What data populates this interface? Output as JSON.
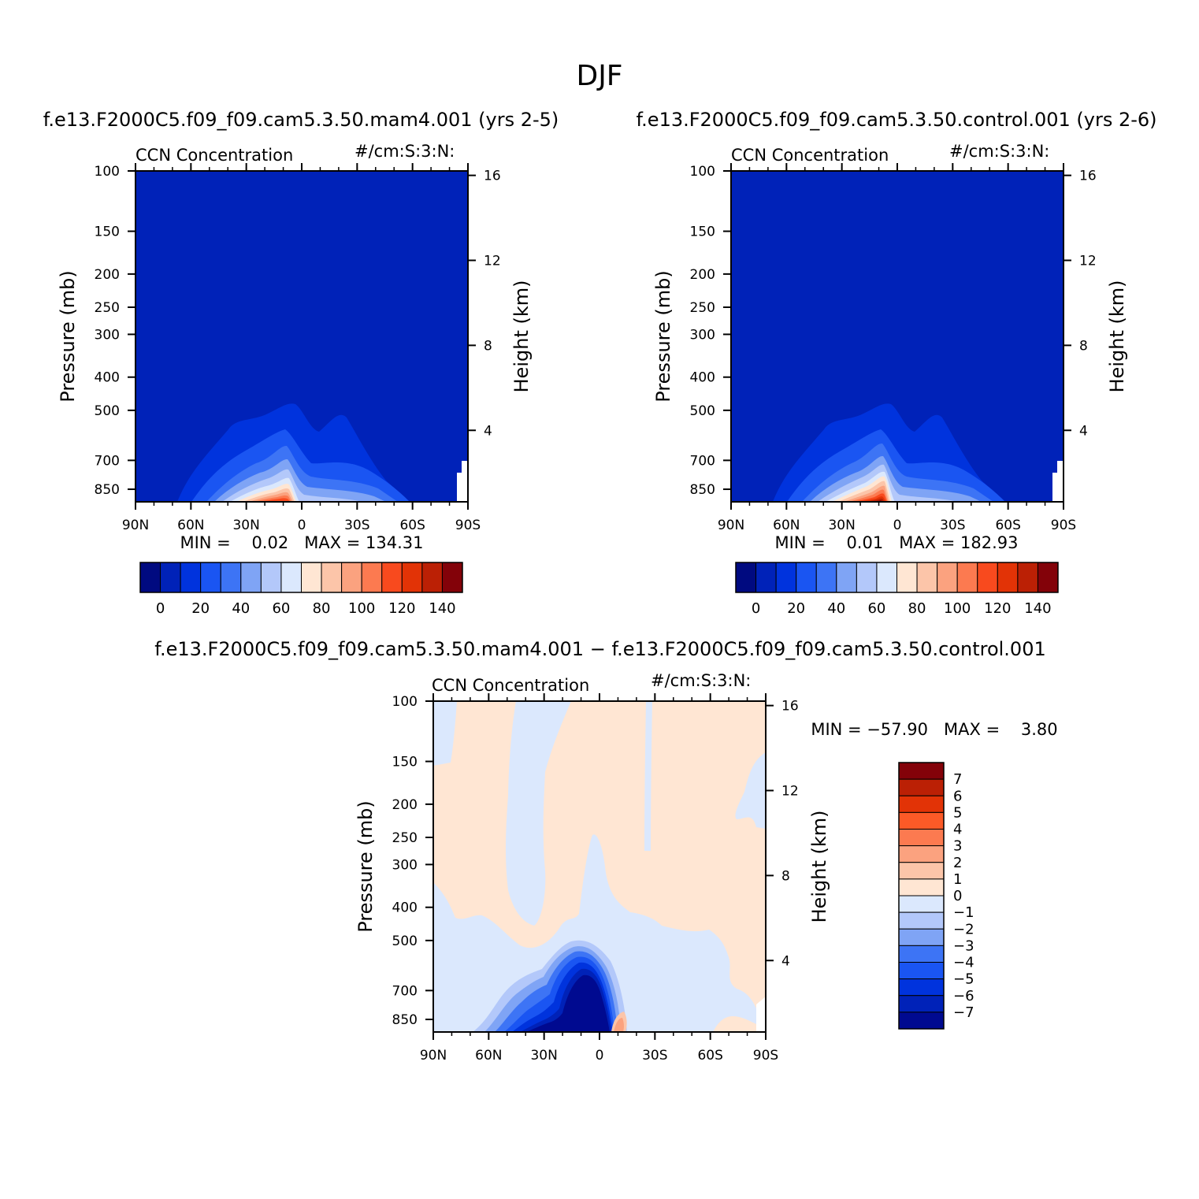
{
  "page_title": "DJF",
  "chart_data": [
    {
      "type": "heatmap",
      "title": "f.e13.F2000C5.f09_f09.cam5.3.50.mam4.001 (yrs 2-5)",
      "subtitle_left": "CCN Concentration",
      "subtitle_right": "#/cm:S:3:N:",
      "xlabel": "",
      "ylabel": "Pressure (mb)",
      "ylabel_right": "Height (km)",
      "x_ticks": [
        "90N",
        "60N",
        "30N",
        "0",
        "30S",
        "60S",
        "90S"
      ],
      "y_ticks": [
        "100",
        "150",
        "200",
        "250",
        "300",
        "400",
        "500",
        "700",
        "850"
      ],
      "y_ticks_right": [
        "16",
        "12",
        "8",
        "4"
      ],
      "stats_text": "MIN =    0.02   MAX = 134.31",
      "min": 0.02,
      "max": 134.31,
      "colorbar_levels": [
        "0",
        "20",
        "40",
        "60",
        "80",
        "100",
        "120",
        "140"
      ],
      "colorbar_orientation": "horizontal"
    },
    {
      "type": "heatmap",
      "title": "f.e13.F2000C5.f09_f09.cam5.3.50.control.001 (yrs 2-6)",
      "subtitle_left": "CCN Concentration",
      "subtitle_right": "#/cm:S:3:N:",
      "xlabel": "",
      "ylabel": "Pressure (mb)",
      "ylabel_right": "Height (km)",
      "x_ticks": [
        "90N",
        "60N",
        "30N",
        "0",
        "30S",
        "60S",
        "90S"
      ],
      "y_ticks": [
        "100",
        "150",
        "200",
        "250",
        "300",
        "400",
        "500",
        "700",
        "850"
      ],
      "y_ticks_right": [
        "16",
        "12",
        "8",
        "4"
      ],
      "stats_text": "MIN =    0.01   MAX = 182.93",
      "min": 0.01,
      "max": 182.93,
      "colorbar_levels": [
        "0",
        "20",
        "40",
        "60",
        "80",
        "100",
        "120",
        "140"
      ],
      "colorbar_orientation": "horizontal"
    },
    {
      "type": "heatmap",
      "title": "f.e13.F2000C5.f09_f09.cam5.3.50.mam4.001 − f.e13.F2000C5.f09_f09.cam5.3.50.control.001",
      "subtitle_left": "CCN Concentration",
      "subtitle_right": "#/cm:S:3:N:",
      "xlabel": "",
      "ylabel": "Pressure (mb)",
      "ylabel_right": "Height (km)",
      "x_ticks": [
        "90N",
        "60N",
        "30N",
        "0",
        "30S",
        "60S",
        "90S"
      ],
      "y_ticks": [
        "100",
        "150",
        "200",
        "250",
        "300",
        "400",
        "500",
        "700",
        "850"
      ],
      "y_ticks_right": [
        "16",
        "12",
        "8",
        "4"
      ],
      "stats_text": "MIN = −57.90   MAX =    3.80",
      "min": -57.9,
      "max": 3.8,
      "colorbar_levels": [
        "7",
        "6",
        "5",
        "4",
        "3",
        "2",
        "1",
        "0",
        "−1",
        "−2",
        "−3",
        "−4",
        "−5",
        "−6",
        "−7"
      ],
      "colorbar_orientation": "vertical"
    }
  ],
  "colors": {
    "field_scale": [
      "#000a80",
      "#0022b8",
      "#0033dd",
      "#1a55f2",
      "#3d74f5",
      "#7fa4f5",
      "#b3c8fa",
      "#dbe8fd",
      "#ffe6d3",
      "#fcc5a9",
      "#fba27f",
      "#fc7a50",
      "#f84a1e",
      "#e23306",
      "#bb2005",
      "#830209"
    ],
    "diff_scale": [
      "#830209",
      "#bb2005",
      "#e23306",
      "#fc5a27",
      "#fc7a50",
      "#fba27f",
      "#fcc5a9",
      "#ffe6d3",
      "#dbe8fd",
      "#b3c8fa",
      "#7fa4f5",
      "#3d74f5",
      "#1a55f2",
      "#0033dd",
      "#0022b8",
      "#000a90"
    ]
  }
}
